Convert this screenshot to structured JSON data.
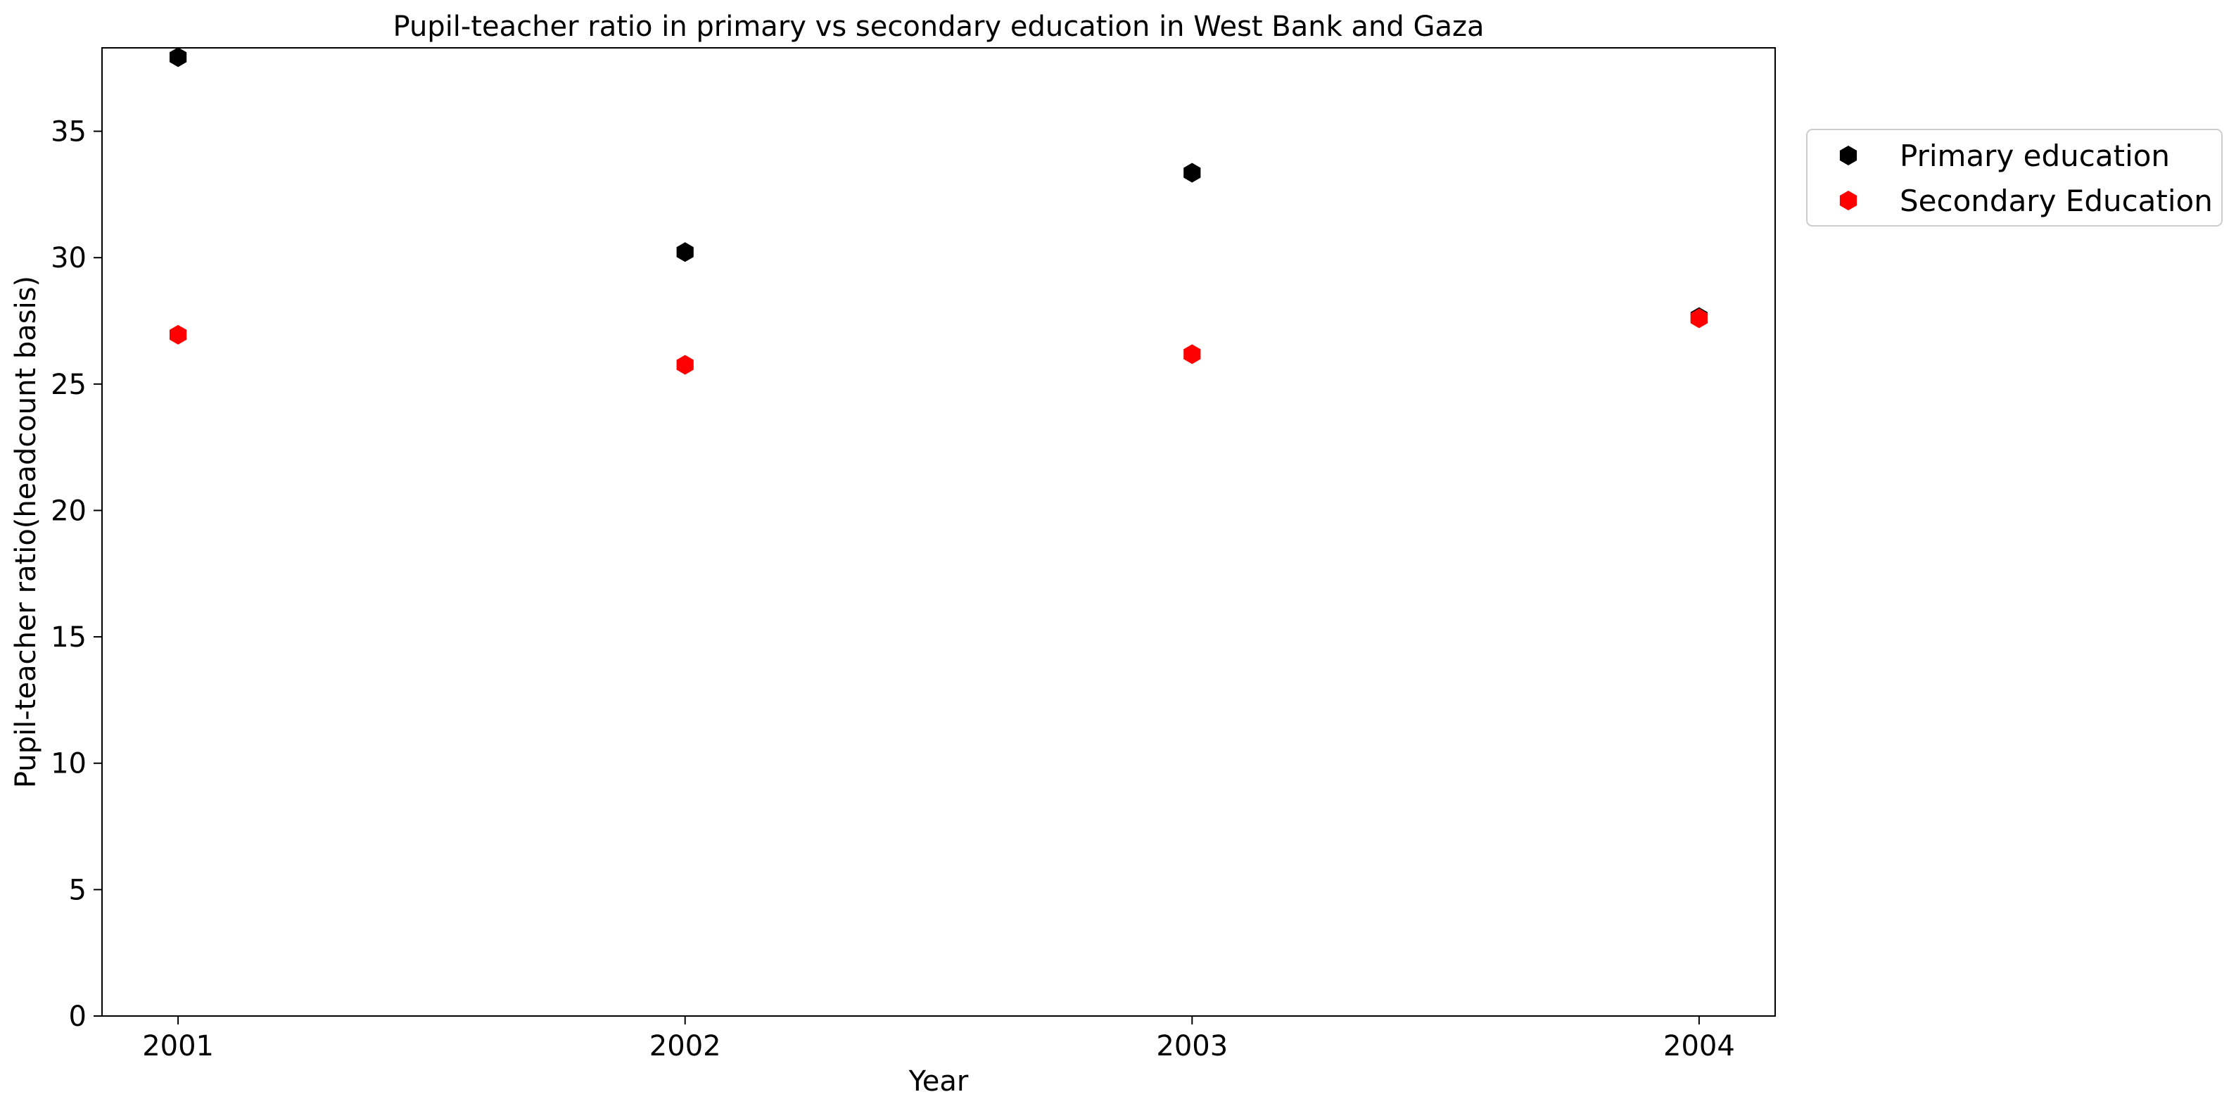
{
  "chart_data": {
    "type": "scatter",
    "title": "Pupil-teacher ratio in primary vs secondary education in West Bank and Gaza",
    "xlabel": "Year",
    "ylabel": "Pupil-teacher ratio(headcount basis)",
    "x": [
      "2001",
      "2002",
      "2003",
      "2004"
    ],
    "xlim": [
      2000.85,
      2004.15
    ],
    "ylim": [
      0,
      38.3
    ],
    "yticks": [
      0,
      5,
      10,
      15,
      20,
      25,
      30,
      35
    ],
    "grid": false,
    "legend_position": "outside-top-right",
    "marker": "hexagon",
    "series": [
      {
        "name": "Primary education",
        "color": "#000000",
        "values": [
          37.93,
          30.22,
          33.36,
          27.65
        ]
      },
      {
        "name": "Secondary Education",
        "color": "#ff0000",
        "values": [
          26.95,
          25.76,
          26.18,
          27.6
        ]
      }
    ]
  }
}
